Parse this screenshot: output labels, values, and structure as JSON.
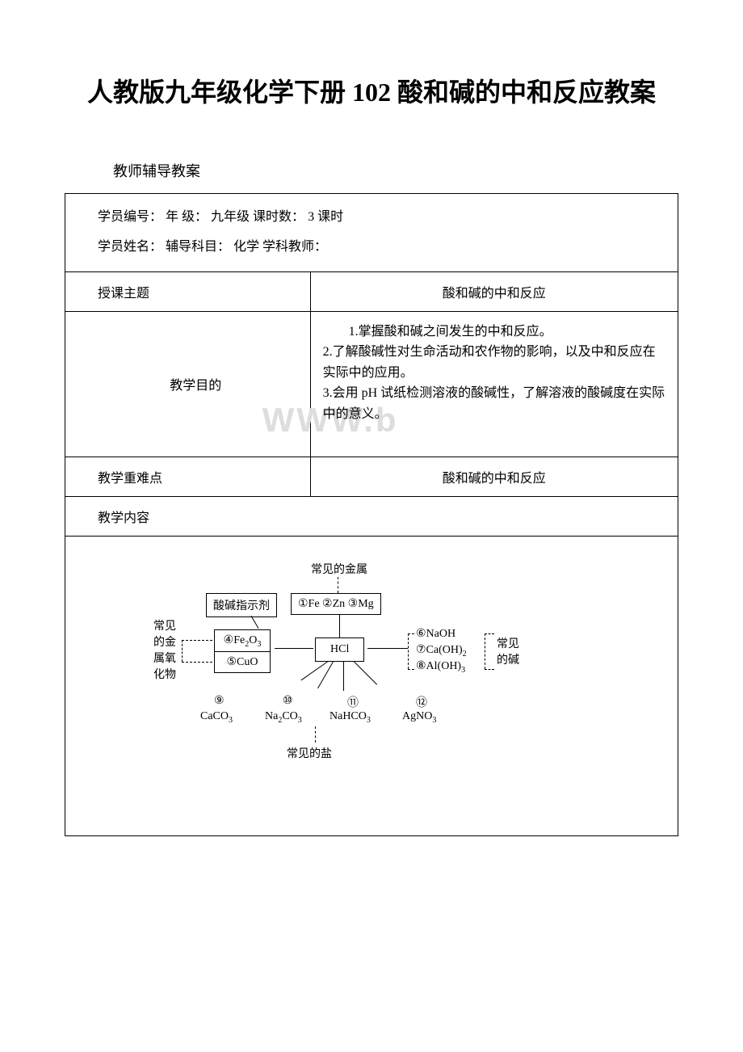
{
  "title": "人教版九年级化学下册 102 酸和碱的中和反应教案",
  "subtitle": "教师辅导教案",
  "header": {
    "line1_label1": "学员编号：",
    "line1_label2": "年 级：",
    "line1_value2": "九年级",
    "line1_label3": "课时数：",
    "line1_value3": "3 课时",
    "line2_label1": "学员姓名：",
    "line2_label2": "辅导科目：",
    "line2_value2": "化学",
    "line2_label3": "学科教师："
  },
  "rows": {
    "topic_label": "授课主题",
    "topic_value": "酸和碱的中和反应",
    "goals_label": "教学目的",
    "goals_text": "　　1.掌握酸和碱之间发生的中和反应。\n2.了解酸碱性对生命活动和农作物的影响，以及中和反应在实际中的应用。\n3.会用 pH 试纸检测溶液的酸碱性，了解溶液的酸碱度在实际中的意义。",
    "difficulty_label": "教学重难点",
    "difficulty_value": "酸和碱的中和反应",
    "content_label": "教学内容"
  },
  "diagram": {
    "top_label": "常见的金属",
    "indicator_box": "酸碱指示剂",
    "metals_box": "①Fe ②Zn ③Mg",
    "left_group_label": "常见\n的金\n属氧\n化物",
    "oxide1": "④Fe₂O₃",
    "oxide2": "⑤CuO",
    "center_box": "HCl",
    "right_group_label": "常见\n的碱",
    "base1": "⑥NaOH",
    "base2": "⑦Ca(OH)₂",
    "base3": "⑧Al(OH)₃",
    "salt1_num": "⑨",
    "salt1": "CaCO₃",
    "salt2_num": "⑩",
    "salt2": "Na₂CO₃",
    "salt3_num": "⑪",
    "salt3": "NaHCO₃",
    "salt4_num": "⑫",
    "salt4": "AgNO₃",
    "bottom_label": "常见的盐"
  },
  "watermark": "WWW.b",
  "colors": {
    "border": "#000000",
    "text": "#000000",
    "background": "#ffffff",
    "watermark": "#dddddd"
  }
}
